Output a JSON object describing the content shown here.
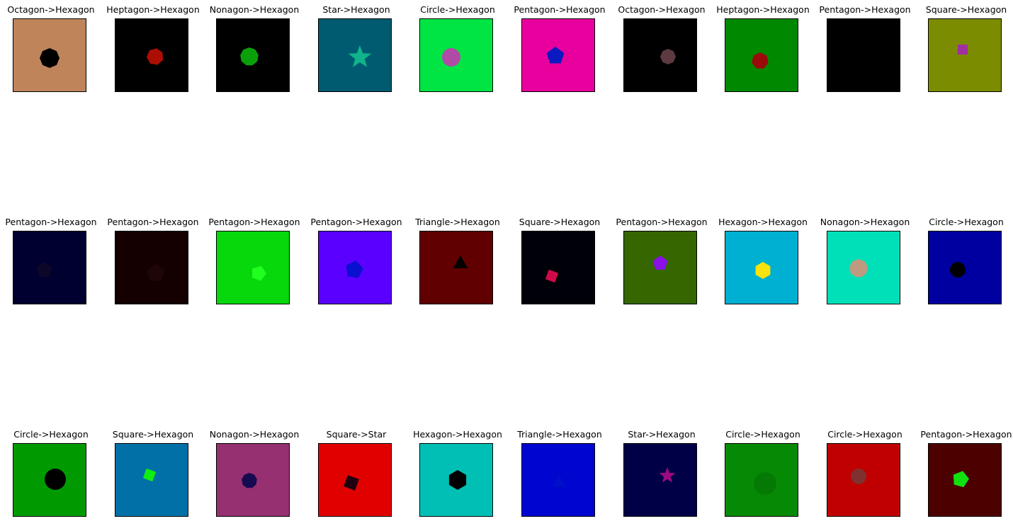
{
  "panels": [
    {
      "title": "Octagon->Hexagon",
      "bg": "#bf845a",
      "shape": "octagon",
      "fill": "#000000"
    },
    {
      "title": "Heptagon->Hexagon",
      "bg": "#000000",
      "shape": "heptagon",
      "fill": "#ad0e04"
    },
    {
      "title": "Nonagon->Hexagon",
      "bg": "#000000",
      "shape": "nonagon",
      "fill": "#0aa00a"
    },
    {
      "title": "Star->Hexagon",
      "bg": "#005b70",
      "shape": "star",
      "fill": "#11b48a"
    },
    {
      "title": "Circle->Hexagon",
      "bg": "#00e544",
      "shape": "circle",
      "fill": "#b04aa6"
    },
    {
      "title": "Pentagon->Hexagon",
      "bg": "#e8009e",
      "shape": "pentagon",
      "fill": "#0a1ac0"
    },
    {
      "title": "Octagon->Hexagon",
      "bg": "#000000",
      "shape": "octagon",
      "fill": "#5c3a40"
    },
    {
      "title": "Heptagon->Hexagon",
      "bg": "#008800",
      "shape": "heptagon",
      "fill": "#9a0a0a"
    },
    {
      "title": "Pentagon->Hexagon",
      "bg": "#000000",
      "shape": "pentagon",
      "fill": "#000000"
    },
    {
      "title": "Square->Hexagon",
      "bg": "#7c8c00",
      "shape": "square",
      "fill": "#a0309e"
    },
    {
      "title": "Pentagon->Hexagon",
      "bg": "#000030",
      "shape": "pentagon",
      "fill": "#0c0628"
    },
    {
      "title": "Pentagon->Hexagon",
      "bg": "#140000",
      "shape": "pentagon",
      "fill": "#1f0606"
    },
    {
      "title": "Pentagon->Hexagon",
      "bg": "#06d80c",
      "shape": "pentagon",
      "fill": "#20ff20"
    },
    {
      "title": "Pentagon->Hexagon",
      "bg": "#5a00ff",
      "shape": "pentagon",
      "fill": "#0a10d0"
    },
    {
      "title": "Triangle->Hexagon",
      "bg": "#600000",
      "shape": "triangle",
      "fill": "#000000"
    },
    {
      "title": "Square->Hexagon",
      "bg": "#000008",
      "shape": "square",
      "fill": "#d00a4a"
    },
    {
      "title": "Pentagon->Hexagon",
      "bg": "#356600",
      "shape": "pentagon",
      "fill": "#8a10e8"
    },
    {
      "title": "Hexagon->Hexagon",
      "bg": "#00b0d2",
      "shape": "hexagon",
      "fill": "#f8e40c"
    },
    {
      "title": "Nonagon->Hexagon",
      "bg": "#00e0b8",
      "shape": "nonagon",
      "fill": "#c09a80"
    },
    {
      "title": "Circle->Hexagon",
      "bg": "#0000a0",
      "shape": "circle",
      "fill": "#000000"
    },
    {
      "title": "Circle->Hexagon",
      "bg": "#009a00",
      "shape": "circle",
      "fill": "#000000"
    },
    {
      "title": "Square->Hexagon",
      "bg": "#0070a6",
      "shape": "square",
      "fill": "#10ee10"
    },
    {
      "title": "Nonagon->Hexagon",
      "bg": "#963070",
      "shape": "nonagon",
      "fill": "#160a50"
    },
    {
      "title": "Square->Star",
      "bg": "#e00000",
      "shape": "square",
      "fill": "#200010"
    },
    {
      "title": "Hexagon->Hexagon",
      "bg": "#00c0b6",
      "shape": "hexagon",
      "fill": "#000000"
    },
    {
      "title": "Triangle->Hexagon",
      "bg": "#0006d0",
      "shape": "triangle",
      "fill": "#0010c8"
    },
    {
      "title": "Star->Hexagon",
      "bg": "#000046",
      "shape": "star",
      "fill": "#9a0a80"
    },
    {
      "title": "Circle->Hexagon",
      "bg": "#068a06",
      "shape": "circle",
      "fill": "#047a04"
    },
    {
      "title": "Circle->Hexagon",
      "bg": "#c00000",
      "shape": "circle",
      "fill": "#803030"
    },
    {
      "title": "Pentagon->Hexagon",
      "bg": "#4c0000",
      "shape": "pentagon",
      "fill": "#10e010"
    }
  ]
}
